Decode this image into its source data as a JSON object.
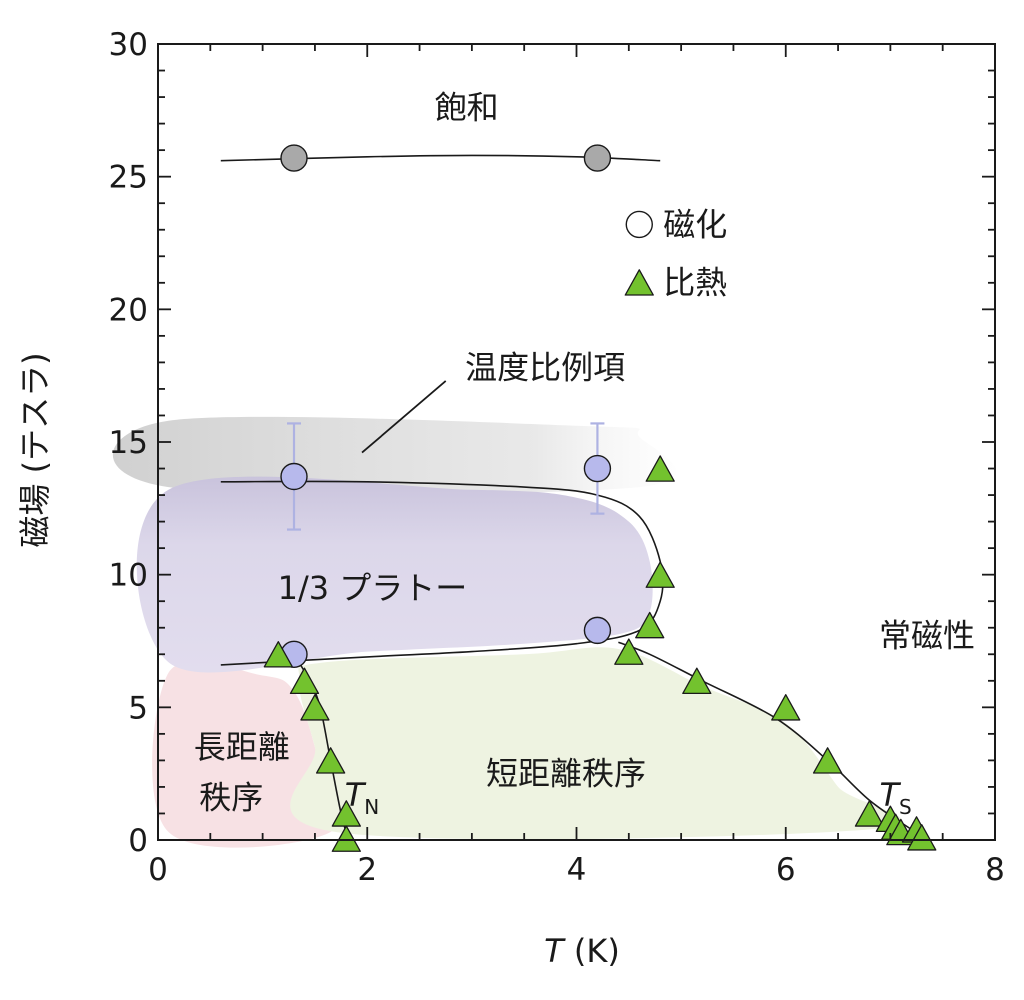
{
  "chart_data": {
    "type": "scatter",
    "title": "",
    "xlabel_italic": "T",
    "xlabel_unit": " (K)",
    "ylabel": "磁場 (テスラ)",
    "xlim": [
      0,
      8
    ],
    "ylim": [
      0,
      30
    ],
    "x_ticks": [
      "0",
      "2",
      "4",
      "6",
      "8"
    ],
    "y_ticks": [
      "0",
      "5",
      "10",
      "15",
      "20",
      "25",
      "30"
    ],
    "grid": false,
    "legend": {
      "placement": "upper-right",
      "entries": [
        {
          "label": "磁化",
          "marker": "circle"
        },
        {
          "label": "比熱",
          "marker": "triangle"
        }
      ]
    },
    "series": [
      {
        "name": "磁化",
        "marker": "circle",
        "points": [
          {
            "x": 1.3,
            "y": 25.7,
            "group": "saturation"
          },
          {
            "x": 4.2,
            "y": 25.7,
            "group": "saturation"
          },
          {
            "x": 1.3,
            "y": 13.7,
            "group": "plateau",
            "err": 2.0
          },
          {
            "x": 4.2,
            "y": 14.0,
            "group": "plateau",
            "err": 1.7
          },
          {
            "x": 1.3,
            "y": 7.0,
            "group": "plateau"
          },
          {
            "x": 4.2,
            "y": 7.9,
            "group": "plateau"
          }
        ]
      },
      {
        "name": "比熱",
        "marker": "triangle",
        "points": [
          {
            "x": 1.15,
            "y": 7.0
          },
          {
            "x": 1.4,
            "y": 6.0
          },
          {
            "x": 1.5,
            "y": 5.0
          },
          {
            "x": 1.65,
            "y": 3.0
          },
          {
            "x": 1.8,
            "y": 1.0
          },
          {
            "x": 1.8,
            "y": 0.05
          },
          {
            "x": 4.5,
            "y": 7.1
          },
          {
            "x": 4.7,
            "y": 8.1
          },
          {
            "x": 4.8,
            "y": 10.0
          },
          {
            "x": 4.8,
            "y": 14.0
          },
          {
            "x": 5.15,
            "y": 6.0
          },
          {
            "x": 6.0,
            "y": 5.0
          },
          {
            "x": 6.4,
            "y": 3.0
          },
          {
            "x": 6.8,
            "y": 1.0
          },
          {
            "x": 7.0,
            "y": 0.8
          },
          {
            "x": 7.05,
            "y": 0.5
          },
          {
            "x": 7.1,
            "y": 0.3
          },
          {
            "x": 7.25,
            "y": 0.4
          },
          {
            "x": 7.3,
            "y": 0.1
          }
        ]
      }
    ],
    "lines": {
      "saturation": [
        [
          0.6,
          25.6
        ],
        [
          2.0,
          25.75
        ],
        [
          3.0,
          25.8
        ],
        [
          4.0,
          25.75
        ],
        [
          4.8,
          25.6
        ]
      ],
      "plateau_boundary": [
        [
          0.6,
          13.5
        ],
        [
          2.0,
          13.5
        ],
        [
          3.5,
          13.3
        ],
        [
          4.2,
          13.0
        ],
        [
          4.6,
          12.2
        ],
        [
          4.8,
          10.5
        ],
        [
          4.8,
          9.0
        ],
        [
          4.6,
          7.9
        ],
        [
          4.0,
          7.4
        ],
        [
          3.0,
          7.1
        ],
        [
          2.0,
          6.9
        ],
        [
          0.6,
          6.6
        ]
      ],
      "TN_boundary": [
        [
          1.3,
          7.0
        ],
        [
          1.45,
          6.0
        ],
        [
          1.55,
          5.0
        ],
        [
          1.65,
          3.0
        ],
        [
          1.75,
          1.0
        ],
        [
          1.82,
          0.0
        ]
      ],
      "TS_boundary": [
        [
          4.4,
          7.45
        ],
        [
          4.7,
          7.0
        ],
        [
          5.2,
          6.0
        ],
        [
          5.9,
          4.6
        ],
        [
          6.4,
          3.0
        ],
        [
          6.8,
          1.5
        ],
        [
          7.2,
          0.4
        ],
        [
          7.35,
          0.0
        ]
      ]
    },
    "regions": {
      "high_field_shade": [
        [
          0.1,
          15.8
        ],
        [
          4.1,
          15.6
        ],
        [
          4.6,
          15.2
        ],
        [
          4.6,
          13.3
        ],
        [
          0.1,
          13.3
        ]
      ],
      "plateau": [
        [
          0.1,
          13.2
        ],
        [
          3.0,
          13.2
        ],
        [
          4.0,
          12.9
        ],
        [
          4.5,
          12.0
        ],
        [
          4.7,
          10.5
        ],
        [
          4.7,
          8.6
        ],
        [
          4.45,
          7.8
        ],
        [
          3.5,
          7.4
        ],
        [
          2.0,
          7.1
        ],
        [
          0.1,
          6.7
        ]
      ],
      "long_range": [
        [
          0.1,
          0.3
        ],
        [
          0.1,
          6.3
        ],
        [
          1.0,
          6.2
        ],
        [
          1.3,
          5.6
        ],
        [
          1.5,
          3.5
        ],
        [
          1.65,
          0.3
        ]
      ],
      "short_range": [
        [
          1.7,
          0.3
        ],
        [
          1.5,
          3.5
        ],
        [
          1.35,
          6.0
        ],
        [
          1.6,
          6.7
        ],
        [
          3.5,
          7.0
        ],
        [
          4.4,
          7.2
        ],
        [
          5.2,
          5.8
        ],
        [
          6.0,
          4.4
        ],
        [
          6.5,
          2.0
        ],
        [
          6.8,
          0.4
        ]
      ]
    },
    "annotations": [
      {
        "text": "飽和",
        "x": 2.95,
        "y": 27.6
      },
      {
        "text": "温度比例項",
        "x": 3.7,
        "y": 17.8
      },
      {
        "text": "1/3 プラトー",
        "x": 2.05,
        "y": 9.5
      },
      {
        "text": "長距離",
        "x": 0.8,
        "y": 3.5
      },
      {
        "text": "秩序",
        "x": 0.7,
        "y": 1.6
      },
      {
        "text": "短距離秩序",
        "x": 3.9,
        "y": 2.5
      },
      {
        "text": "常磁性",
        "x": 7.35,
        "y": 7.7
      }
    ],
    "annotation_leader": [
      [
        1.95,
        14.6
      ],
      [
        2.75,
        17.3
      ]
    ],
    "transition_labels": [
      {
        "main": "T",
        "sub": "N",
        "x": 1.95,
        "y": 1.7
      },
      {
        "main": "T",
        "sub": "S",
        "x": 7.05,
        "y": 1.7
      }
    ],
    "colors": {
      "magnetization_saturation": "#a9a9a9",
      "magnetization_plateau": "#b7b9ec",
      "specific_heat": "#73c22e",
      "plateau_region": "#ddd8ec",
      "long_range_region": "#f7e1e4",
      "short_range_region": "#eef3e1",
      "high_field_shade": "#cfcfcf",
      "error_bar": "#aeb2e2"
    }
  }
}
